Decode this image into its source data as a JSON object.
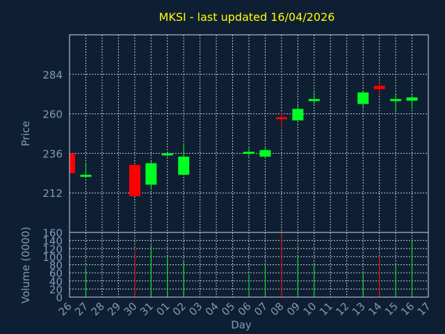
{
  "chart_data": {
    "type": "candlestick",
    "title": "MKSI - last updated 16/04/2026",
    "xlabel": "Day",
    "price_panel": {
      "ylabel": "Price",
      "ylim": [
        188,
        308
      ],
      "yticks": [
        212,
        236,
        260,
        284
      ],
      "grid": true
    },
    "volume_panel": {
      "ylabel": "Volume (0000)",
      "ylim": [
        0,
        160
      ],
      "yticks": [
        0,
        20,
        40,
        60,
        80,
        100,
        120,
        140,
        160
      ],
      "grid": true
    },
    "days": [
      "26",
      "27",
      "28",
      "29",
      "30",
      "31",
      "01",
      "02",
      "03",
      "04",
      "05",
      "06",
      "07",
      "08",
      "09",
      "10",
      "11",
      "12",
      "13",
      "14",
      "15",
      "16",
      "17"
    ],
    "candles": [
      {
        "day": "26",
        "open": 236,
        "close": 224,
        "high": 236,
        "low": 224,
        "volume": null
      },
      {
        "day": "27",
        "open": 222,
        "close": 223,
        "high": 230,
        "low": 221,
        "volume": 72
      },
      {
        "day": "30",
        "open": 229,
        "close": 210,
        "high": 229,
        "low": 210,
        "volume": 120
      },
      {
        "day": "31",
        "open": 217,
        "close": 230,
        "high": 231,
        "low": 214,
        "volume": 128
      },
      {
        "day": "01",
        "open": 235,
        "close": 236,
        "high": 236,
        "low": 234,
        "volume": 100
      },
      {
        "day": "02",
        "open": 223,
        "close": 234,
        "high": 241,
        "low": 223,
        "volume": 90
      },
      {
        "day": "06",
        "open": 236,
        "close": 237,
        "high": 240,
        "low": 233,
        "volume": 55
      },
      {
        "day": "07",
        "open": 234,
        "close": 238,
        "high": 240,
        "low": 233,
        "volume": 85
      },
      {
        "day": "08",
        "open": 258,
        "close": 257,
        "high": 261,
        "low": 251,
        "volume": 160
      },
      {
        "day": "09",
        "open": 256,
        "close": 263,
        "high": 266,
        "low": 256,
        "volume": 105
      },
      {
        "day": "10",
        "open": 268,
        "close": 269,
        "high": 273,
        "low": 266,
        "volume": 80
      },
      {
        "day": "13",
        "open": 266,
        "close": 273,
        "high": 274,
        "low": 264,
        "volume": 58
      },
      {
        "day": "14",
        "open": 277,
        "close": 275,
        "high": 279,
        "low": 271,
        "volume": 103
      },
      {
        "day": "15",
        "open": 269,
        "close": 269,
        "high": 272,
        "low": 261,
        "volume": 82
      },
      {
        "day": "16",
        "open": 268,
        "close": 270,
        "high": 272,
        "low": 263,
        "volume": 140
      }
    ],
    "colors": {
      "background": "#0f1f33",
      "title": "#ffff00",
      "axis_text": "#7f9bb8",
      "frame": "#d0d8e0",
      "grid": "#c8d0d8",
      "up": "#00ff22",
      "down": "#ff0000"
    }
  }
}
